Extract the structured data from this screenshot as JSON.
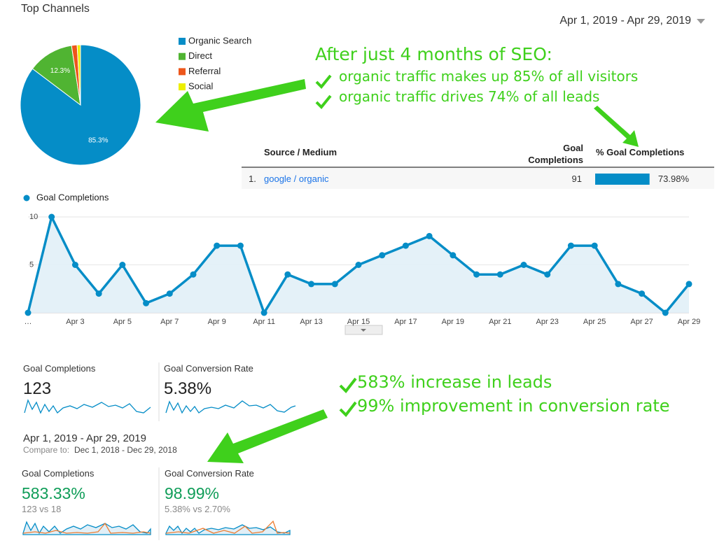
{
  "header": {
    "title": "Top Channels",
    "date_range": "Apr 1, 2019 - Apr 29, 2019"
  },
  "chart_data": [
    {
      "type": "pie",
      "categories": [
        "Organic Search",
        "Direct",
        "Referral",
        "Social"
      ],
      "values": [
        85.3,
        12.3,
        1.5,
        0.9
      ],
      "value_labels": [
        "85.3%",
        "12.3%",
        null,
        null
      ],
      "colors": [
        "#058dc7",
        "#50b432",
        "#ed561b",
        "#edef00"
      ],
      "legend": "right"
    },
    {
      "type": "line",
      "categories": [
        "…",
        null,
        "Apr 3",
        null,
        "Apr 5",
        null,
        "Apr 7",
        null,
        "Apr 9",
        null,
        "Apr 11",
        null,
        "Apr 13",
        null,
        "Apr 15",
        null,
        "Apr 17",
        null,
        "Apr 19",
        null,
        "Apr 21",
        null,
        "Apr 23",
        null,
        "Apr 25",
        null,
        "Apr 27",
        null,
        "Apr 29"
      ],
      "series": [
        {
          "name": "Goal Completions",
          "color": "#058dc7",
          "values": [
            0,
            10,
            5,
            2,
            5,
            1,
            2,
            4,
            7,
            7,
            0,
            4,
            3,
            3,
            5,
            6,
            7,
            8,
            6,
            4,
            4,
            5,
            4,
            7,
            7,
            3,
            2,
            0,
            3
          ]
        }
      ],
      "ylim": [
        0,
        10
      ],
      "yticks": [
        5,
        10
      ],
      "grid": true,
      "area": true
    }
  ],
  "annotations": {
    "headline": "After just 4 months of SEO:",
    "points": [
      "organic traffic makes up 85% of all visitors",
      "organic traffic drives 74% of all leads"
    ],
    "results": [
      "583% increase in leads",
      "99% improvement in conversion rate"
    ]
  },
  "table": {
    "columns": [
      "Source / Medium",
      "Goal Completions",
      "% Goal Completions"
    ],
    "rows": [
      {
        "index": "1.",
        "source": "google / organic",
        "goal_completions": 91,
        "values": [
          73.98
        ],
        "value_labels": [
          "73.98%"
        ]
      }
    ],
    "xlim": [
      0,
      100
    ]
  },
  "metrics": [
    {
      "name": "Goal Completions",
      "value": 123
    },
    {
      "name": "Goal Conversion Rate",
      "value": "5.38%"
    }
  ],
  "comparison": {
    "date_range": "Apr 1, 2019 - Apr 29, 2019",
    "compare_label": "Compare to:",
    "compare_range": "Dec 1, 2018 - Dec 29, 2018",
    "metrics": [
      {
        "name": "Goal Completions",
        "change": "583.33%",
        "detail": "123 vs 18"
      },
      {
        "name": "Goal Conversion Rate",
        "change": "98.99%",
        "detail": "5.38% vs 2.70%"
      }
    ]
  }
}
